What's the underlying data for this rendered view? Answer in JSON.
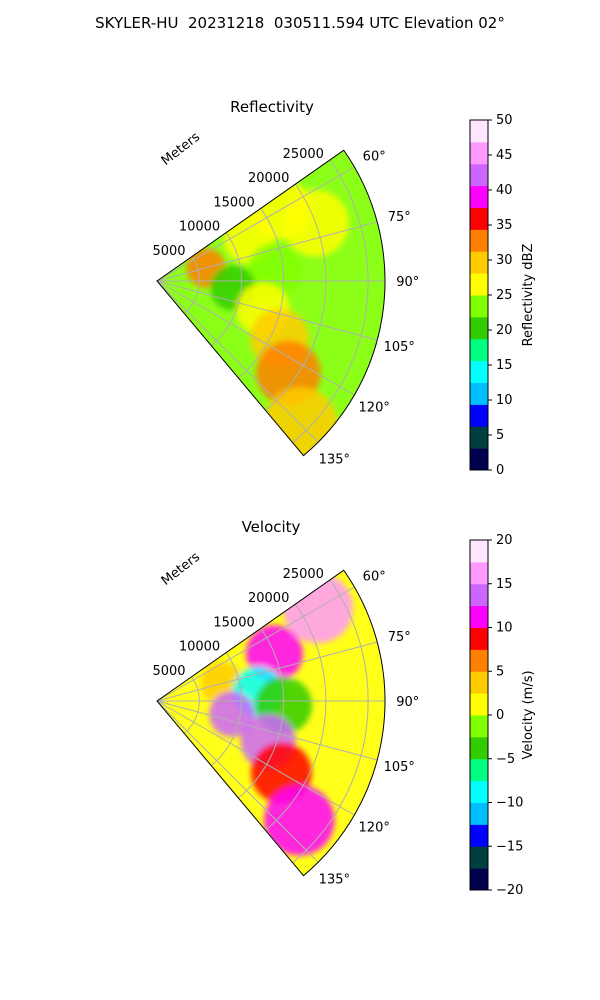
{
  "figure_title": "SKYLER-HU  20231218  030511.594 UTC Elevation 02°",
  "chart_data": [
    {
      "type": "heatmap",
      "title": "Reflectivity",
      "radial_label": "Meters",
      "range_ticks": [
        "5000",
        "10000",
        "15000",
        "20000",
        "25000"
      ],
      "range_values": [
        5000,
        10000,
        15000,
        20000,
        25000
      ],
      "range_max": 27000,
      "azimuth_ticks": [
        "60°",
        "75°",
        "90°",
        "105°",
        "120°",
        "135°"
      ],
      "azimuth_values": [
        60,
        75,
        90,
        105,
        120,
        135
      ],
      "azimuth_range": [
        55,
        140
      ],
      "colorbar": {
        "label": "Reflectivity dBZ",
        "ticks": [
          "0",
          "5",
          "10",
          "15",
          "20",
          "25",
          "30",
          "35",
          "40",
          "45",
          "50"
        ],
        "min": 0,
        "max": 50,
        "colors": [
          "#00004f",
          "#003f3f",
          "#0000ff",
          "#00bfff",
          "#00ffff",
          "#00ff80",
          "#33cc00",
          "#80ff00",
          "#ffff00",
          "#ffcc00",
          "#ff8000",
          "#ff0000",
          "#ff00ff",
          "#cc66ff",
          "#ff99ff",
          "#ffe6ff"
        ]
      },
      "features": [
        {
          "azimuth": 60,
          "range": 17000,
          "value": 26
        },
        {
          "azimuth": 65,
          "range": 12000,
          "value": 28
        },
        {
          "azimuth": 70,
          "range": 20000,
          "value": 27
        },
        {
          "azimuth": 75,
          "range": 6000,
          "value": 34
        },
        {
          "azimuth": 85,
          "range": 14000,
          "value": 22
        },
        {
          "azimuth": 95,
          "range": 9000,
          "value": 21
        },
        {
          "azimuth": 105,
          "range": 13000,
          "value": 25
        },
        {
          "azimuth": 115,
          "range": 16000,
          "value": 29
        },
        {
          "azimuth": 125,
          "range": 19000,
          "value": 33
        },
        {
          "azimuth": 135,
          "range": 24000,
          "value": 31
        }
      ]
    },
    {
      "type": "heatmap",
      "title": "Velocity",
      "radial_label": "Meters",
      "range_ticks": [
        "5000",
        "10000",
        "15000",
        "20000",
        "25000"
      ],
      "range_values": [
        5000,
        10000,
        15000,
        20000,
        25000
      ],
      "range_max": 27000,
      "azimuth_ticks": [
        "60°",
        "75°",
        "90°",
        "105°",
        "120°",
        "135°"
      ],
      "azimuth_values": [
        60,
        75,
        90,
        105,
        120,
        135
      ],
      "azimuth_range": [
        55,
        140
      ],
      "colorbar": {
        "label": "Velocity (m/s)",
        "ticks": [
          "−20",
          "−15",
          "−10",
          "−5",
          "0",
          "5",
          "10",
          "15",
          "20"
        ],
        "min": -20,
        "max": 20,
        "colors": [
          "#00004f",
          "#003f3f",
          "#0000ff",
          "#00bfff",
          "#00ffff",
          "#00ff80",
          "#33cc00",
          "#80ff00",
          "#ffff00",
          "#ffcc00",
          "#ff8000",
          "#ff0000",
          "#ff00ff",
          "#cc66ff",
          "#ff99ff",
          "#ffe6ff"
        ]
      },
      "features": [
        {
          "azimuth": 60,
          "range": 22000,
          "value": 15
        },
        {
          "azimuth": 68,
          "range": 15000,
          "value": 10
        },
        {
          "azimuth": 75,
          "range": 8000,
          "value": 3
        },
        {
          "azimuth": 85,
          "range": 12000,
          "value": -8
        },
        {
          "azimuth": 92,
          "range": 15000,
          "value": -5
        },
        {
          "azimuth": 100,
          "range": 9000,
          "value": 14
        },
        {
          "azimuth": 110,
          "range": 14000,
          "value": 13
        },
        {
          "azimuth": 120,
          "range": 17000,
          "value": 9
        },
        {
          "azimuth": 130,
          "range": 22000,
          "value": 12
        }
      ]
    }
  ]
}
